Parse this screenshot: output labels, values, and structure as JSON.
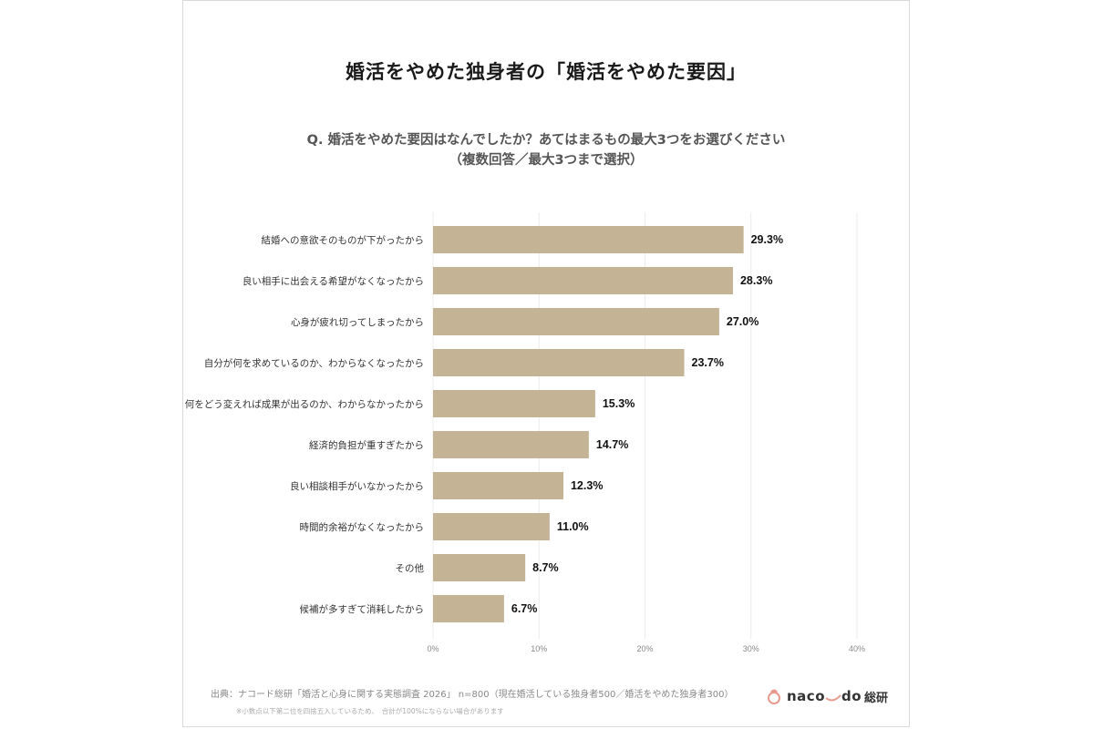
{
  "title": "婚活をやめた独身者の「婚活をやめた要因」",
  "question": {
    "line1": "Q. 婚活をやめた要因はなんでしたか？あてはまるもの最大3つをお選びください",
    "line2": "（複数回答／最大3つまで選択）"
  },
  "chart_data": {
    "type": "bar",
    "orientation": "horizontal",
    "categories": [
      "結婚への意欲そのものが下がったから",
      "良い相手に出会える希望がなくなったから",
      "心身が疲れ切ってしまったから",
      "自分が何を求めているのか、わからなくなったから",
      "何をどう変えれば成果が出るのか、わからなかったから",
      "経済的負担が重すぎたから",
      "良い相談相手がいなかったから",
      "時間的余裕がなくなったから",
      "その他",
      "候補が多すぎて消耗したから"
    ],
    "values": [
      29.3,
      28.3,
      27.0,
      23.7,
      15.3,
      14.7,
      12.3,
      11.0,
      8.7,
      6.7
    ],
    "value_labels": [
      "29.3%",
      "28.3%",
      "27.0%",
      "23.7%",
      "15.3%",
      "14.7%",
      "12.3%",
      "11.0%",
      "8.7%",
      "6.7%"
    ],
    "x_ticks": [
      0,
      10,
      20,
      30,
      40
    ],
    "x_tick_labels": [
      "0%",
      "10%",
      "20%",
      "30%",
      "40%"
    ],
    "xlim": [
      0,
      40
    ],
    "grid": true,
    "bar_color": "#c4b394"
  },
  "footer": {
    "source": "出典：ナコード総研「婚活と心身に関する実態調査 2026」 n=800（現在婚活している独身者500／婚活をやめた独身者300）",
    "note": "※小数点以下第二位を四捨五入しているため、　合計が100%にならない場合があります"
  },
  "logo": {
    "text": "naco",
    "text2": "do",
    "suffix": "総研",
    "icon": "knot-icon",
    "accent": "#e8998d"
  }
}
